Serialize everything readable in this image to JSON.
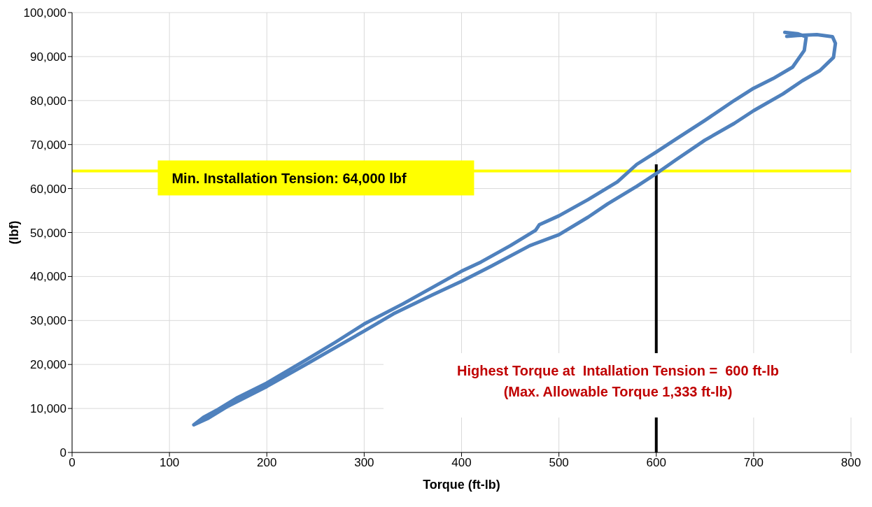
{
  "chart_data": {
    "type": "line",
    "xlabel": "Torque (ft-lb)",
    "ylabel": "(lbf)",
    "xlim": [
      0,
      800
    ],
    "xticks": [
      0,
      100,
      200,
      300,
      400,
      500,
      600,
      700,
      800
    ],
    "ylim": [
      0,
      100000
    ],
    "yticks": [
      0,
      {
        "value": 10000,
        "label": "10,000"
      },
      {
        "value": 20000,
        "label": "20,000"
      },
      {
        "value": 30000,
        "label": "30,000"
      },
      {
        "value": 40000,
        "label": "40,000"
      },
      {
        "value": 50000,
        "label": "50,000"
      },
      {
        "value": 60000,
        "label": "60,000"
      },
      {
        "value": 70000,
        "label": "70,000"
      },
      {
        "value": 80000,
        "label": "80,000"
      },
      {
        "value": 90000,
        "label": "90,000"
      },
      {
        "value": 100000,
        "label": "100,000"
      }
    ],
    "grid": true,
    "legend": false,
    "marker": "none",
    "line_style": "solid",
    "series": [
      {
        "color": "#4f81bd",
        "x": [
          732,
          745,
          754,
          752,
          740,
          720,
          700,
          680,
          650,
          620,
          600,
          580,
          560,
          530,
          500,
          480,
          476,
          450,
          420,
          400,
          370,
          340,
          300,
          270,
          240,
          200,
          170,
          150,
          135,
          125,
          140,
          160,
          200,
          240,
          270,
          300,
          330,
          370,
          400,
          430,
          470,
          500,
          530,
          550,
          580,
          600,
          620,
          650,
          680,
          700,
          730,
          750,
          768,
          782,
          784,
          781,
          765,
          745,
          734
        ],
        "values": [
          95500,
          95200,
          94500,
          91400,
          87600,
          85000,
          82800,
          80000,
          75500,
          71200,
          68300,
          65500,
          61500,
          57500,
          53800,
          51800,
          50500,
          47000,
          43300,
          41200,
          37500,
          33800,
          29200,
          25000,
          21000,
          15800,
          12500,
          9800,
          8000,
          6300,
          7800,
          10500,
          15000,
          20000,
          23800,
          27600,
          31500,
          35800,
          38900,
          42300,
          47000,
          49500,
          53500,
          56500,
          60500,
          63400,
          66500,
          71000,
          74800,
          77700,
          81500,
          84500,
          86800,
          89800,
          93000,
          94500,
          95000,
          94800,
          94600
        ]
      }
    ],
    "ref_lines": [
      {
        "axis": "y",
        "value": 64000,
        "label": "Min. Installation Tension: 64,000 lbf",
        "color": "#ffff00"
      },
      {
        "axis": "x",
        "value": 600,
        "label": null,
        "color": "#000000"
      }
    ],
    "annotations": [
      "Highest Torque at  Intallation Tension =  600 ft-lb",
      "(Max. Allowable Torque 1,333 ft-lb)"
    ]
  }
}
